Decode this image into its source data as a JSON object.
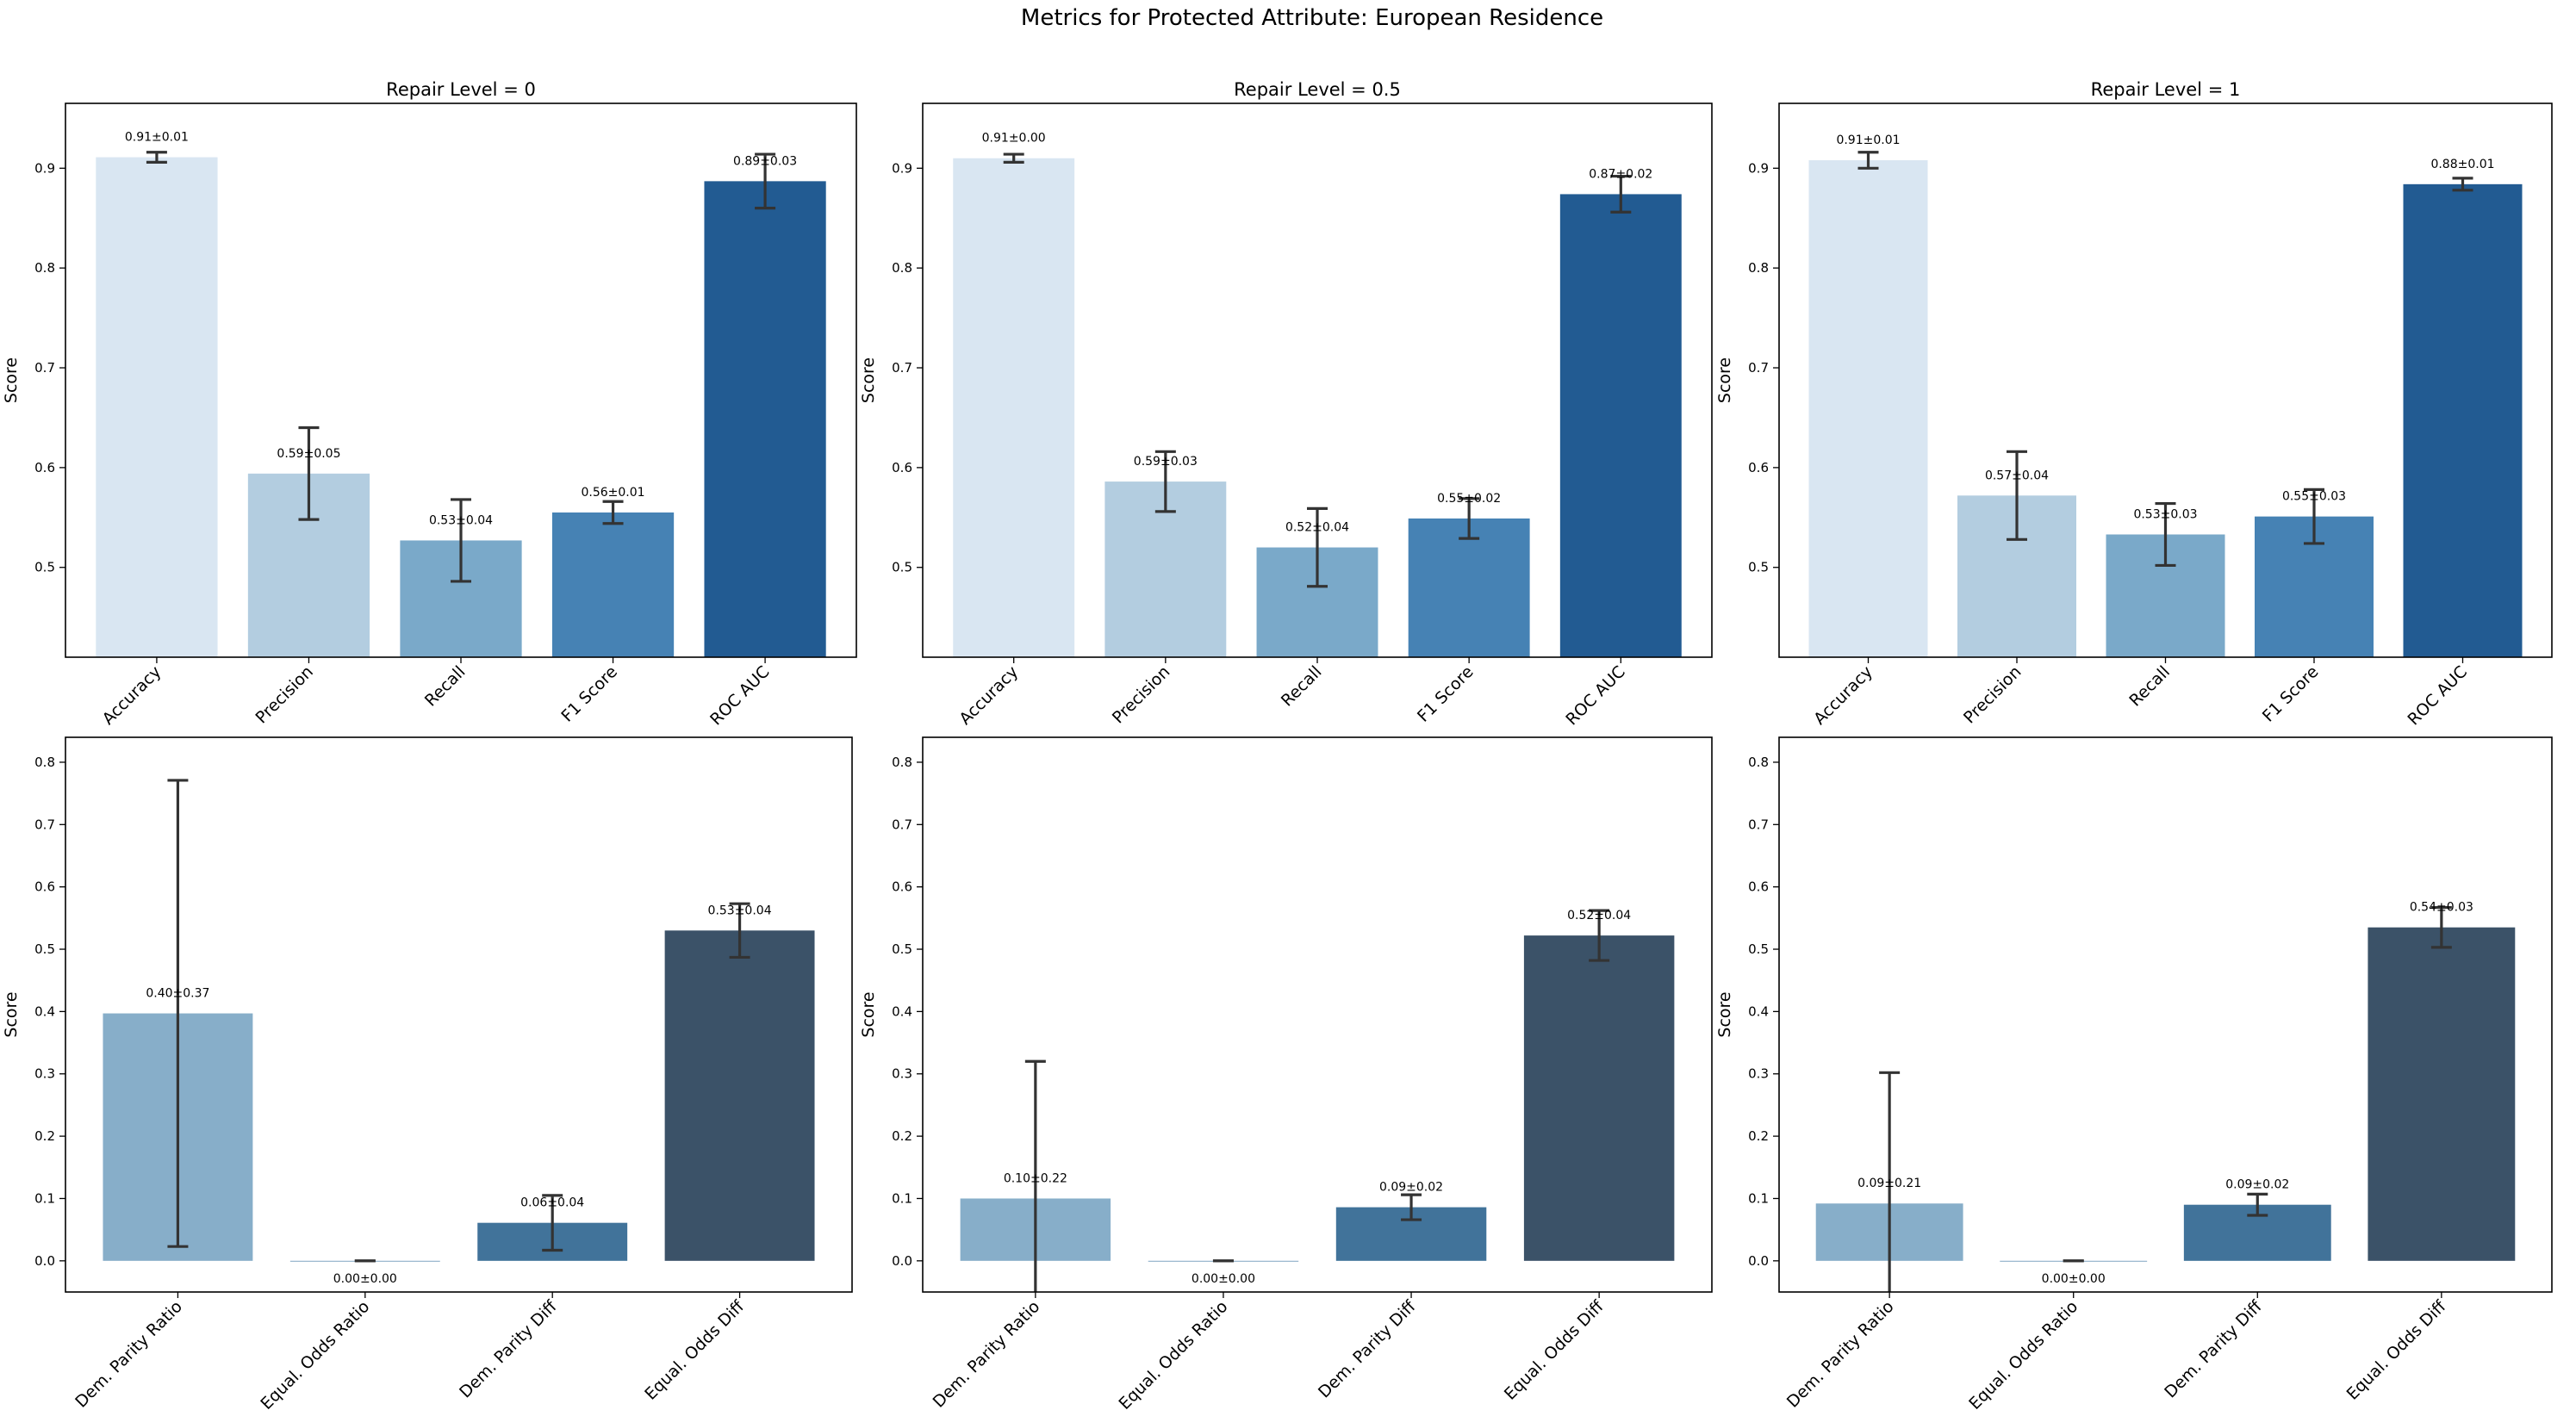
{
  "figure_title": "Metrics for Protected Attribute: European Residence",
  "chart_data": [
    {
      "type": "bar",
      "title": "Repair Level = 0",
      "ylabel": "Score",
      "ylim": [
        0.41,
        0.965
      ],
      "yticks": [
        0.5,
        0.6,
        0.7,
        0.8,
        0.9
      ],
      "categories": [
        "Accuracy",
        "Precision",
        "Recall",
        "F1 Score",
        "ROC AUC"
      ],
      "values": [
        0.911,
        0.594,
        0.527,
        0.555,
        0.887
      ],
      "errors": [
        0.005,
        0.046,
        0.041,
        0.011,
        0.027
      ],
      "labels": [
        "0.91±0.01",
        "0.59±0.05",
        "0.53±0.04",
        "0.56±0.01",
        "0.89±0.03"
      ],
      "colors": [
        "#d9e6f2",
        "#b3cde0",
        "#7aa9c9",
        "#4682b4",
        "#225b92"
      ]
    },
    {
      "type": "bar",
      "title": "Repair Level = 0.5",
      "ylabel": "Score",
      "ylim": [
        0.41,
        0.965
      ],
      "yticks": [
        0.5,
        0.6,
        0.7,
        0.8,
        0.9
      ],
      "categories": [
        "Accuracy",
        "Precision",
        "Recall",
        "F1 Score",
        "ROC AUC"
      ],
      "values": [
        0.91,
        0.586,
        0.52,
        0.549,
        0.874
      ],
      "errors": [
        0.004,
        0.03,
        0.039,
        0.02,
        0.018
      ],
      "labels": [
        "0.91±0.00",
        "0.59±0.03",
        "0.52±0.04",
        "0.55±0.02",
        "0.87±0.02"
      ],
      "colors": [
        "#d9e6f2",
        "#b3cde0",
        "#7aa9c9",
        "#4682b4",
        "#225b92"
      ]
    },
    {
      "type": "bar",
      "title": "Repair Level = 1",
      "ylabel": "Score",
      "ylim": [
        0.41,
        0.965
      ],
      "yticks": [
        0.5,
        0.6,
        0.7,
        0.8,
        0.9
      ],
      "categories": [
        "Accuracy",
        "Precision",
        "Recall",
        "F1 Score",
        "ROC AUC"
      ],
      "values": [
        0.908,
        0.572,
        0.533,
        0.551,
        0.884
      ],
      "errors": [
        0.008,
        0.044,
        0.031,
        0.027,
        0.006
      ],
      "labels": [
        "0.91±0.01",
        "0.57±0.04",
        "0.53±0.03",
        "0.55±0.03",
        "0.88±0.01"
      ],
      "colors": [
        "#d9e6f2",
        "#b3cde0",
        "#7aa9c9",
        "#4682b4",
        "#225b92"
      ]
    },
    {
      "type": "bar",
      "title": "",
      "ylabel": "Score",
      "ylim": [
        -0.05,
        0.84
      ],
      "yticks": [
        0.0,
        0.1,
        0.2,
        0.3,
        0.4,
        0.5,
        0.6,
        0.7,
        0.8
      ],
      "categories": [
        "Dem. Parity Ratio",
        "Equal. Odds Ratio",
        "Dem. Parity Diff",
        "Equal. Odds Diff"
      ],
      "values": [
        0.397,
        0.0,
        0.061,
        0.53
      ],
      "errors": [
        0.374,
        0.0,
        0.044,
        0.043
      ],
      "labels": [
        "0.40±0.37",
        "0.00±0.00",
        "0.06±0.04",
        "0.53±0.04"
      ],
      "colors": [
        "#87aec9",
        "#5f8fb3",
        "#41739a",
        "#3b5268"
      ]
    },
    {
      "type": "bar",
      "title": "",
      "ylabel": "Score",
      "ylim": [
        -0.05,
        0.84
      ],
      "yticks": [
        0.0,
        0.1,
        0.2,
        0.3,
        0.4,
        0.5,
        0.6,
        0.7,
        0.8
      ],
      "categories": [
        "Dem. Parity Ratio",
        "Equal. Odds Ratio",
        "Dem. Parity Diff",
        "Equal. Odds Diff"
      ],
      "values": [
        0.1,
        0.0,
        0.086,
        0.522
      ],
      "errors": [
        0.22,
        0.0,
        0.02,
        0.04
      ],
      "labels": [
        "0.10±0.22",
        "0.00±0.00",
        "0.09±0.02",
        "0.52±0.04"
      ],
      "colors": [
        "#87aec9",
        "#5f8fb3",
        "#41739a",
        "#3b5268"
      ]
    },
    {
      "type": "bar",
      "title": "",
      "ylabel": "Score",
      "ylim": [
        -0.05,
        0.84
      ],
      "yticks": [
        0.0,
        0.1,
        0.2,
        0.3,
        0.4,
        0.5,
        0.6,
        0.7,
        0.8
      ],
      "categories": [
        "Dem. Parity Ratio",
        "Equal. Odds Ratio",
        "Dem. Parity Diff",
        "Equal. Odds Diff"
      ],
      "values": [
        0.092,
        0.0,
        0.09,
        0.535
      ],
      "errors": [
        0.21,
        0.0,
        0.017,
        0.032
      ],
      "labels": [
        "0.09±0.21",
        "0.00±0.00",
        "0.09±0.02",
        "0.54±0.03"
      ],
      "colors": [
        "#87aec9",
        "#5f8fb3",
        "#41739a",
        "#3b5268"
      ]
    }
  ]
}
